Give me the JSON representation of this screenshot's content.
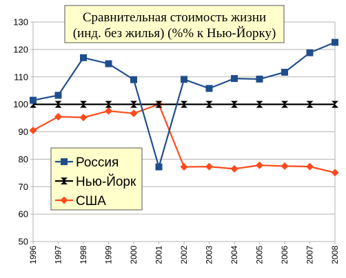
{
  "chart_data": {
    "type": "line",
    "title": [
      "Сравнительная стоимость жизни",
      "(инд. без жилья) (%% к Нью-Йорку)"
    ],
    "xlabel": "",
    "ylabel": "",
    "categories": [
      "1996",
      "1997",
      "1998",
      "1999",
      "2000",
      "2001",
      "2002",
      "2003",
      "2004",
      "2005",
      "2006",
      "2007",
      "2008"
    ],
    "ylim": [
      50,
      130
    ],
    "yticks": [
      50,
      60,
      70,
      80,
      90,
      100,
      110,
      120,
      130
    ],
    "grid": true,
    "legend_position": "middle-left",
    "series": [
      {
        "name": "Россия",
        "color": "#1f4e8c",
        "marker": "square",
        "values": [
          101.5,
          103.3,
          117.0,
          114.8,
          109.0,
          77.2,
          109.1,
          105.8,
          109.4,
          109.2,
          111.7,
          118.8,
          122.6
        ]
      },
      {
        "name": "Нью-Йорк",
        "color": "#000000",
        "marker": "bowtie",
        "values": [
          100,
          100,
          100,
          100,
          100,
          100,
          100,
          100,
          100,
          100,
          100,
          100,
          100
        ]
      },
      {
        "name": "США",
        "color": "#ff4a1c",
        "marker": "diamond",
        "values": [
          90.5,
          95.5,
          95.2,
          97.6,
          96.7,
          100.0,
          77.2,
          77.3,
          76.5,
          77.8,
          77.5,
          77.3,
          75.1
        ]
      }
    ]
  }
}
